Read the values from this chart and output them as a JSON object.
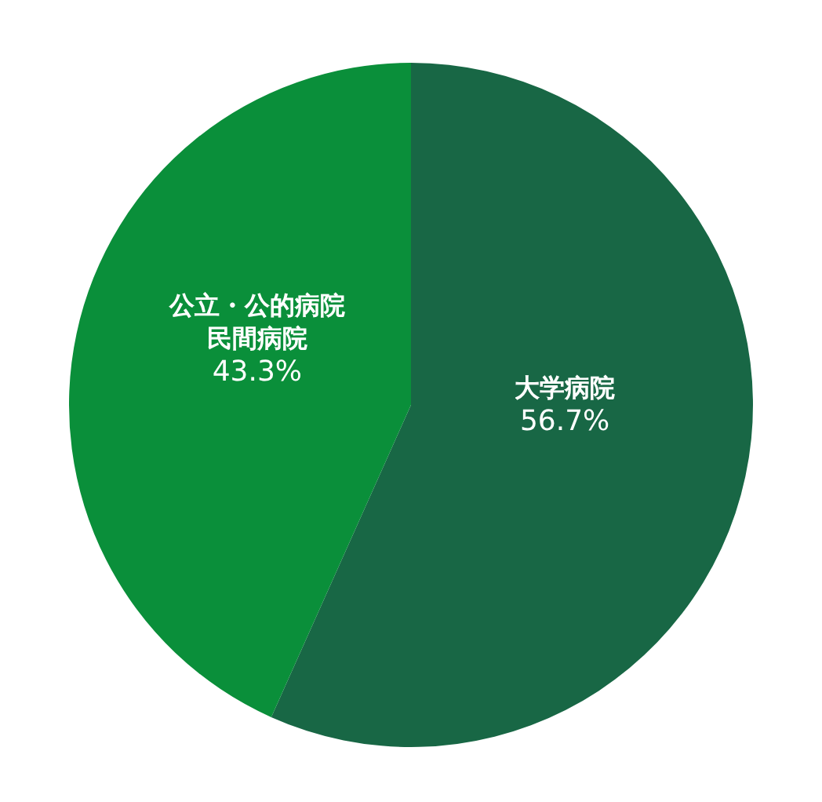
{
  "chart_data": {
    "type": "pie",
    "categories": [
      "大学病院",
      "公立・公的病院民間病院"
    ],
    "values": [
      56.7,
      43.3
    ],
    "value_labels": [
      "56.7%",
      "43.3%"
    ],
    "colors": [
      "#186745",
      "#0a8f3a"
    ],
    "legend": false
  }
}
